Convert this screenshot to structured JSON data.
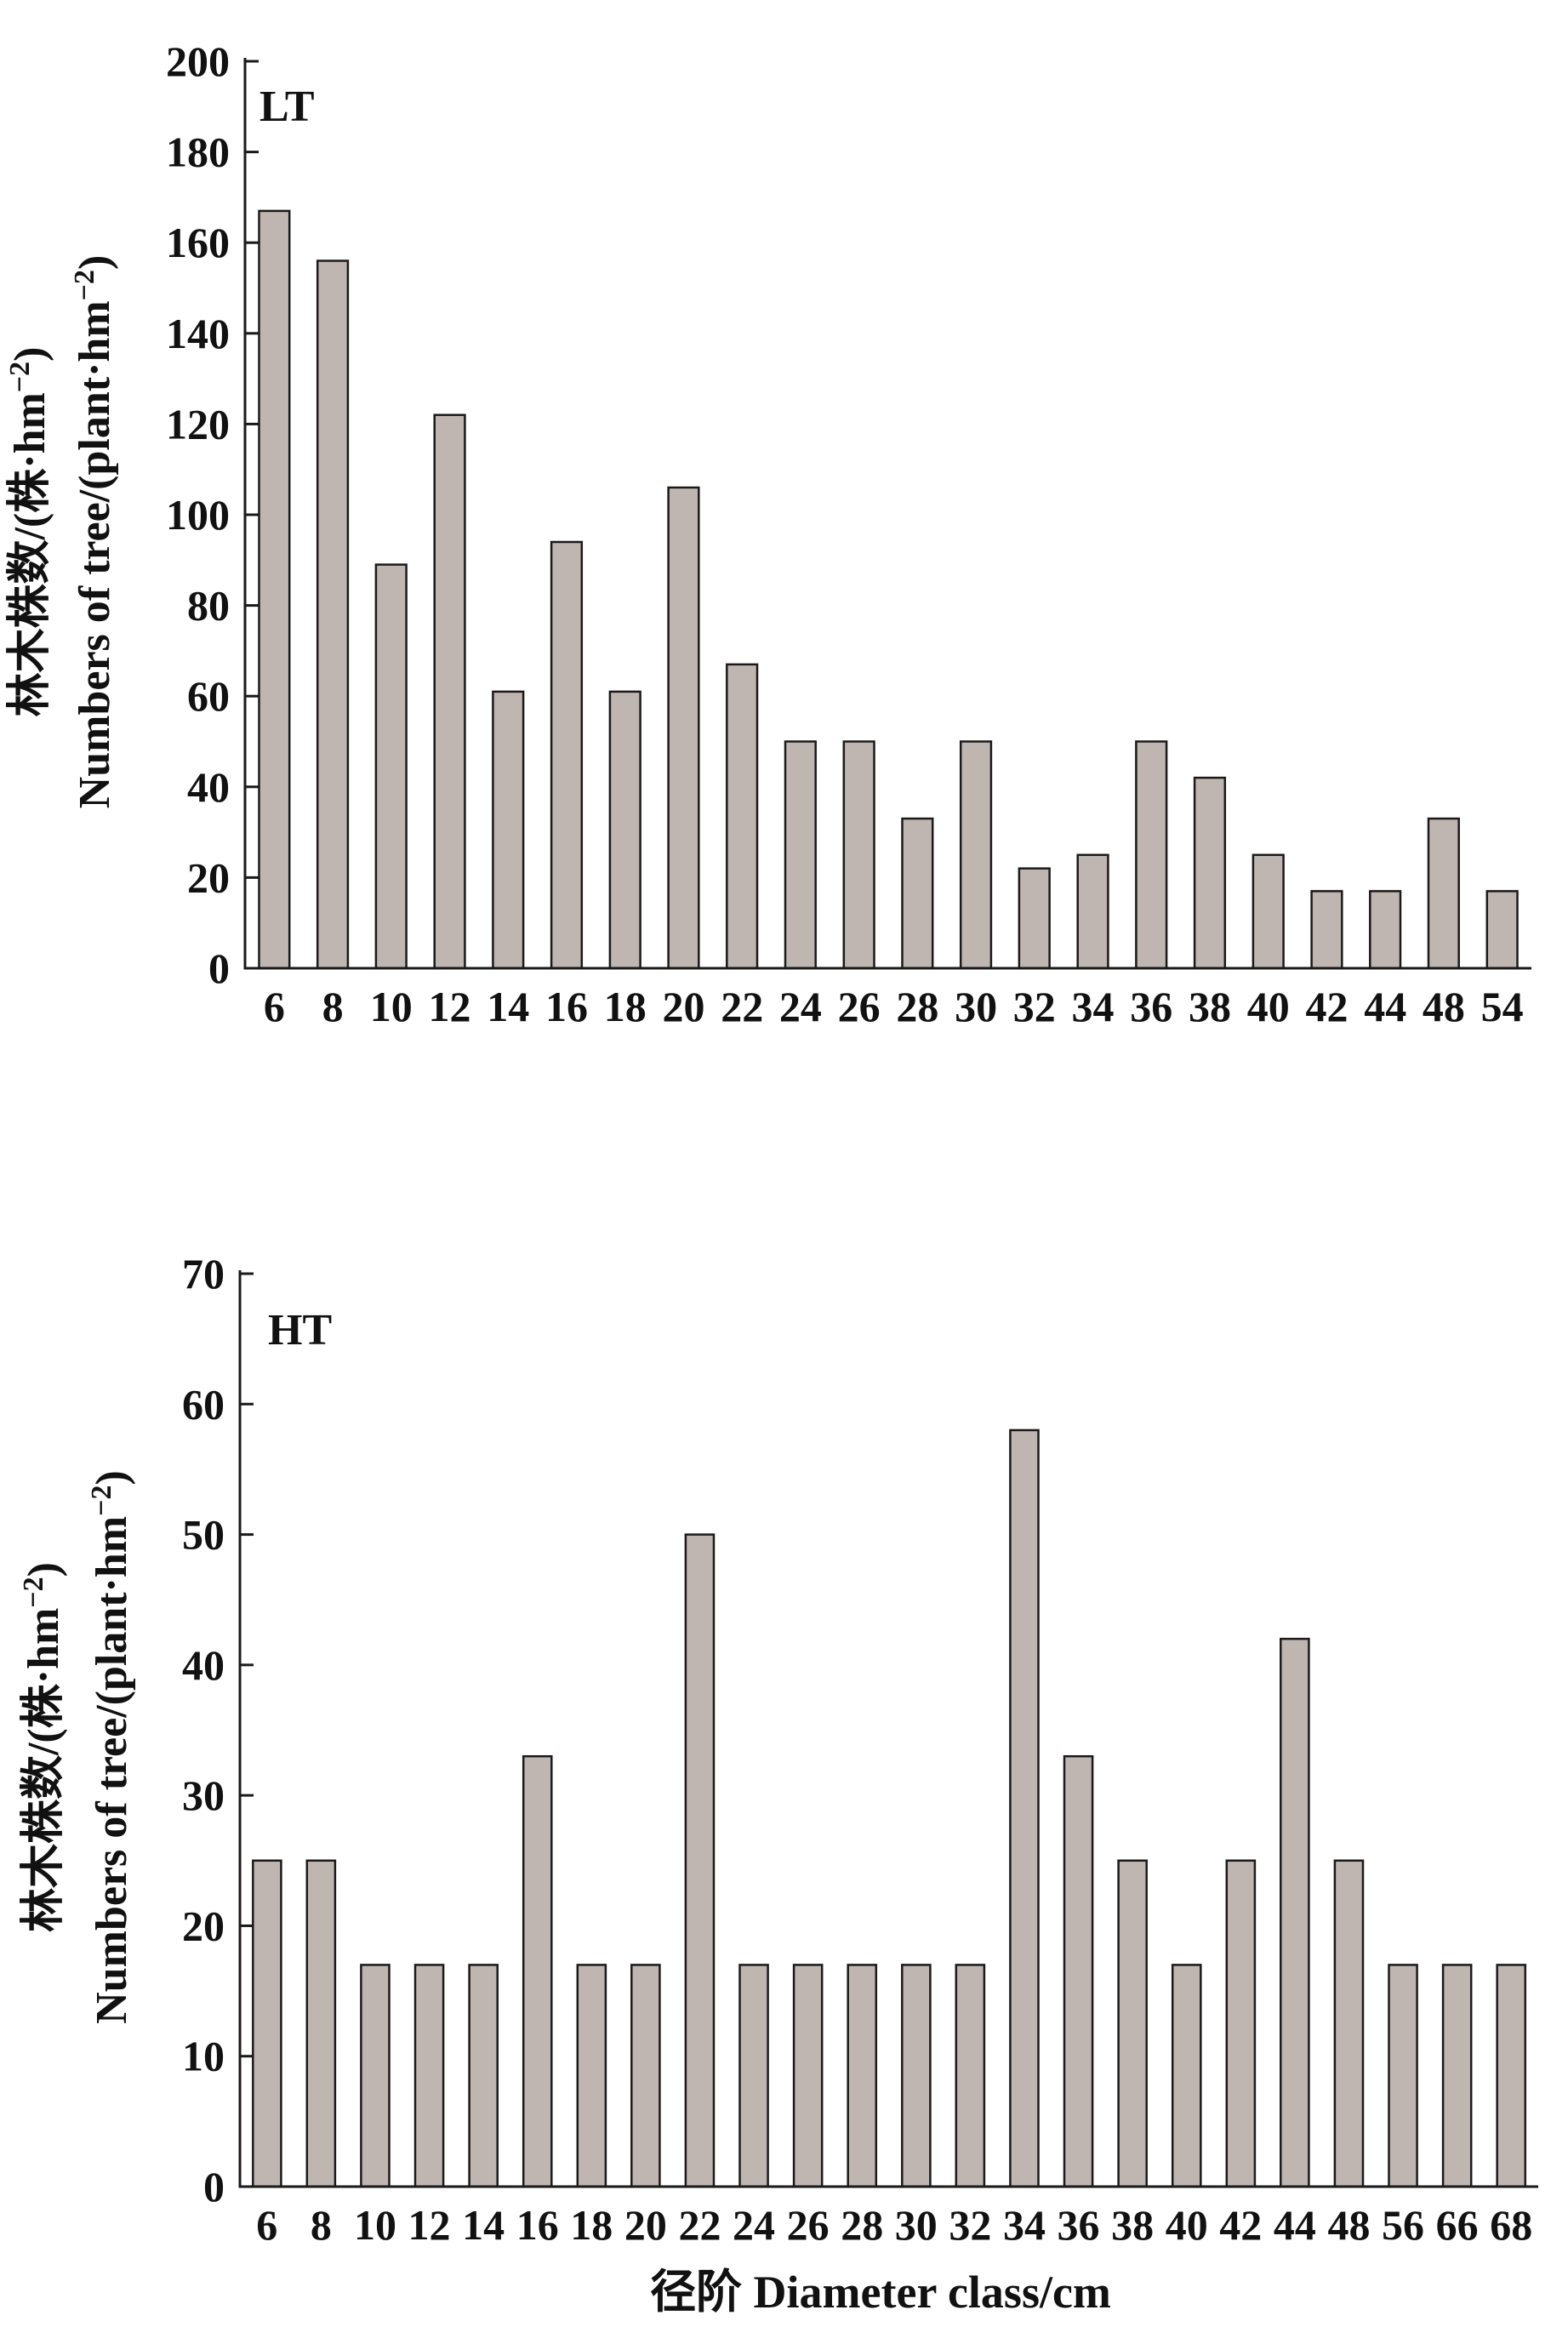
{
  "chart_data": [
    {
      "type": "bar",
      "panel_label": "LT",
      "categories": [
        "6",
        "8",
        "10",
        "12",
        "14",
        "16",
        "18",
        "20",
        "22",
        "24",
        "26",
        "28",
        "30",
        "32",
        "34",
        "36",
        "38",
        "40",
        "42",
        "44",
        "48",
        "54"
      ],
      "values": [
        167,
        156,
        89,
        122,
        61,
        94,
        61,
        106,
        67,
        50,
        50,
        33,
        50,
        22,
        25,
        50,
        42,
        25,
        17,
        17,
        33,
        17
      ],
      "ylim": [
        0,
        200
      ],
      "yticks": [
        0,
        20,
        40,
        60,
        80,
        100,
        120,
        140,
        160,
        180,
        200
      ],
      "ylabel_cn": "林木株数/(株·hm",
      "ylabel_en": "Numbers of tree/(plant·hm",
      "ylabel_sup": "−2",
      "ylabel_close": ")",
      "xlabel": "",
      "grid": false,
      "bar_color": "#bfb6b2"
    },
    {
      "type": "bar",
      "panel_label": "HT",
      "categories": [
        "6",
        "8",
        "10",
        "12",
        "14",
        "16",
        "18",
        "20",
        "22",
        "24",
        "26",
        "28",
        "30",
        "32",
        "34",
        "36",
        "38",
        "40",
        "42",
        "44",
        "48",
        "56",
        "66",
        "68"
      ],
      "values": [
        25,
        25,
        17,
        17,
        17,
        33,
        17,
        17,
        50,
        17,
        17,
        17,
        17,
        17,
        58,
        33,
        25,
        17,
        25,
        42,
        25,
        17,
        17,
        17
      ],
      "ylim": [
        0,
        70
      ],
      "yticks": [
        0,
        10,
        20,
        30,
        40,
        50,
        60,
        70
      ],
      "ylabel_cn": "林木株数/(株·hm",
      "ylabel_en": "Numbers of tree/(plant·hm",
      "ylabel_sup": "−2",
      "ylabel_close": ")",
      "xlabel": "径阶 Diameter class/cm",
      "grid": false,
      "bar_color": "#bfb6b2"
    }
  ]
}
